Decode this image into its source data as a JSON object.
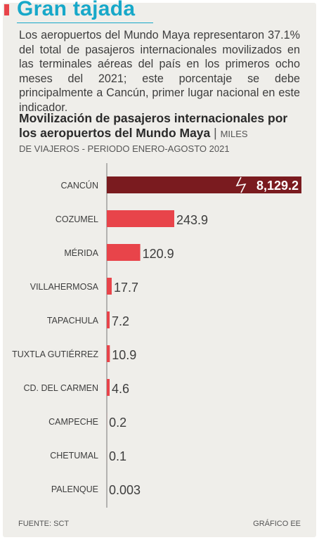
{
  "header": {
    "headline": "Gran tajada",
    "lede": "Los aeropuertos del Mundo Maya representaron 37.1% del total de pasajeros internacionales movilizados en las terminales aéreas del país en los primeros ocho meses del 2021; este porcentaje se debe principalmente a Cancún, primer lugar nacional en este indicador."
  },
  "chart_title": {
    "main": "Movilización de pasajeros internacionales por los aeropuertos del Mundo Maya",
    "separator": "|",
    "unit_start": "MILES",
    "subtitle": "DE VIAJEROS - PERIODO ENERO-AGOSTO 2021"
  },
  "chart_data": {
    "type": "bar",
    "orientation": "horizontal",
    "title": "Movilización de pasajeros internacionales por los aeropuertos del Mundo Maya",
    "unit": "MILES DE VIAJEROS - PERIODO ENERO-AGOSTO 2021",
    "categories": [
      "CANCÚN",
      "COZUMEL",
      "MÉRIDA",
      "VILLAHERMOSA",
      "TAPACHULA",
      "TUXTLA GUTIÉRREZ",
      "CD. DEL CARMEN",
      "CAMPECHE",
      "CHETUMAL",
      "PALENQUE"
    ],
    "values": [
      8129.2,
      243.9,
      120.9,
      17.7,
      7.2,
      10.9,
      4.6,
      0.2,
      0.1,
      0.003
    ],
    "value_labels": [
      "8,129.2",
      "243.9",
      "120.9",
      "17.7",
      "7.2",
      "10.9",
      "4.6",
      "0.2",
      "0.1",
      "0.003"
    ],
    "axis_break": "CANCÚN",
    "colors": {
      "highlight": "#7a1b1f",
      "bar": "#e8444a",
      "axis": "#777777"
    }
  },
  "footer": {
    "source": "FUENTE: SCT",
    "credit": "GRÁFICO EE"
  }
}
